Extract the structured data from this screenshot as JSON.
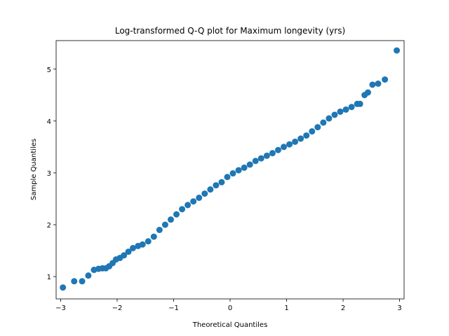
{
  "chart_data": {
    "type": "scatter",
    "title": "Log-transformed Q-Q plot for Maximum longevity (yrs)",
    "x_label": "Theoretical Quantiles",
    "y_label": "Sample Quantiles",
    "color": "#1f77b4",
    "x": [
      -2.96,
      -2.76,
      -2.62,
      -2.51,
      -2.41,
      -2.33,
      -2.26,
      -2.2,
      -2.14,
      -2.08,
      -2.02,
      -1.95,
      -1.88,
      -1.8,
      -1.72,
      -1.63,
      -1.55,
      -1.45,
      -1.35,
      -1.25,
      -1.15,
      -1.05,
      -0.95,
      -0.85,
      -0.75,
      -0.65,
      -0.55,
      -0.45,
      -0.35,
      -0.25,
      -0.15,
      -0.05,
      0.05,
      0.15,
      0.25,
      0.35,
      0.45,
      0.55,
      0.65,
      0.75,
      0.85,
      0.95,
      1.05,
      1.15,
      1.25,
      1.35,
      1.45,
      1.55,
      1.65,
      1.75,
      1.85,
      1.95,
      2.05,
      2.15,
      2.25,
      2.3,
      2.38,
      2.44,
      2.52,
      2.62,
      2.74,
      2.95
    ],
    "values": [
      0.79,
      0.91,
      0.91,
      1.02,
      1.13,
      1.15,
      1.16,
      1.16,
      1.2,
      1.26,
      1.33,
      1.36,
      1.41,
      1.48,
      1.55,
      1.59,
      1.62,
      1.68,
      1.77,
      1.9,
      2.0,
      2.1,
      2.2,
      2.3,
      2.38,
      2.45,
      2.52,
      2.6,
      2.68,
      2.76,
      2.82,
      2.92,
      2.99,
      3.05,
      3.1,
      3.16,
      3.23,
      3.28,
      3.33,
      3.38,
      3.44,
      3.5,
      3.55,
      3.6,
      3.66,
      3.72,
      3.8,
      3.88,
      3.97,
      4.05,
      4.12,
      4.18,
      4.22,
      4.27,
      4.33,
      4.33,
      4.5,
      4.55,
      4.7,
      4.72,
      4.8,
      5.36
    ],
    "xlim": [
      -3.08,
      3.08
    ],
    "ylim": [
      0.57,
      5.55
    ],
    "xticks": [
      {
        "value": -3,
        "label": "−3"
      },
      {
        "value": -2,
        "label": "−2"
      },
      {
        "value": -1,
        "label": "−1"
      },
      0,
      1,
      2,
      3
    ],
    "yticks": [
      1,
      2,
      3,
      4,
      5
    ]
  }
}
